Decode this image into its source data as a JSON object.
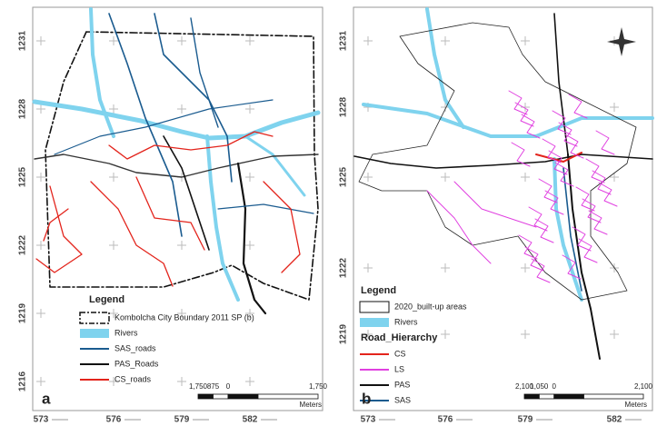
{
  "panels": [
    {
      "label": "a",
      "xticks": [
        573,
        576,
        579,
        582
      ],
      "yticks": [
        1231,
        1228,
        1225,
        1222,
        1219,
        1216
      ],
      "legend": {
        "title": "Legend",
        "items": [
          "Kombolcha City Boundary 2011 SP (b)",
          "Rivers",
          "SAS_roads",
          "PAS_Roads",
          "CS_roads"
        ]
      },
      "scale": {
        "labels": [
          "1,750",
          "875",
          "0",
          "1,750"
        ],
        "unit": "Meters"
      }
    },
    {
      "label": "b",
      "xticks": [
        573,
        576,
        579,
        582
      ],
      "yticks": [
        1231,
        1228,
        1225,
        1222,
        1219
      ],
      "legend": {
        "title": "Legend",
        "items": [
          "2020_built-up areas",
          "Rivers"
        ],
        "subtitle": "Road_Hierarchy",
        "roads": [
          "CS",
          "LS",
          "PAS",
          "SAS"
        ]
      },
      "scale": {
        "labels": [
          "2,100",
          "1,050",
          "0",
          "2,100"
        ],
        "unit": "Meters"
      }
    }
  ]
}
